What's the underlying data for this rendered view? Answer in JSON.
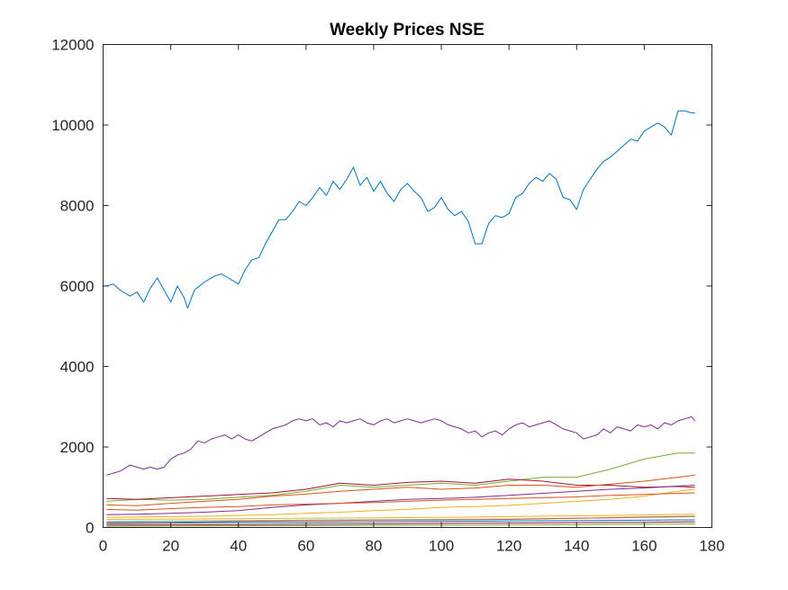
{
  "chart_data": {
    "type": "line",
    "title": "Weekly Prices NSE",
    "xlabel": "",
    "ylabel": "",
    "xlim": [
      0,
      180
    ],
    "ylim": [
      0,
      12000
    ],
    "xticks": [
      0,
      20,
      40,
      60,
      80,
      100,
      120,
      140,
      160,
      180
    ],
    "yticks": [
      0,
      2000,
      4000,
      6000,
      8000,
      10000,
      12000
    ],
    "grid": false,
    "legend": "none",
    "box": true,
    "series": [
      {
        "color": "#0072BD",
        "x": [
          1,
          3,
          5,
          8,
          10,
          12,
          14,
          16,
          18,
          20,
          22,
          24,
          25,
          27,
          30,
          33,
          35,
          37,
          40,
          42,
          44,
          46,
          48,
          50,
          52,
          54,
          56,
          58,
          60,
          62,
          64,
          66,
          68,
          70,
          72,
          74,
          76,
          78,
          80,
          82,
          84,
          86,
          88,
          90,
          92,
          94,
          96,
          98,
          100,
          102,
          104,
          106,
          108,
          110,
          112,
          114,
          116,
          118,
          120,
          122,
          124,
          126,
          128,
          130,
          132,
          134,
          136,
          138,
          140,
          142,
          144,
          146,
          148,
          150,
          152,
          154,
          156,
          158,
          160,
          162,
          164,
          166,
          168,
          170,
          172,
          174,
          175
        ],
        "y": [
          6000,
          6050,
          5900,
          5750,
          5850,
          5600,
          5950,
          6200,
          5900,
          5600,
          6000,
          5700,
          5450,
          5900,
          6100,
          6250,
          6300,
          6200,
          6050,
          6400,
          6650,
          6700,
          7050,
          7350,
          7650,
          7650,
          7850,
          8100,
          8000,
          8200,
          8450,
          8250,
          8600,
          8400,
          8650,
          8950,
          8500,
          8700,
          8350,
          8600,
          8300,
          8100,
          8400,
          8550,
          8350,
          8200,
          7850,
          7950,
          8200,
          7900,
          7750,
          7850,
          7600,
          7050,
          7050,
          7550,
          7750,
          7700,
          7800,
          8200,
          8300,
          8550,
          8700,
          8600,
          8800,
          8650,
          8200,
          8150,
          7900,
          8400,
          8650,
          8900,
          9100,
          9200,
          9350,
          9500,
          9650,
          9600,
          9850,
          9950,
          10050,
          9950,
          9750,
          10350,
          10350,
          10300,
          10300
        ]
      },
      {
        "color": "#7E2F8E",
        "x": [
          1,
          3,
          5,
          8,
          10,
          12,
          14,
          16,
          18,
          20,
          22,
          24,
          26,
          28,
          30,
          32,
          34,
          36,
          38,
          40,
          42,
          44,
          46,
          48,
          50,
          52,
          54,
          56,
          58,
          60,
          62,
          64,
          66,
          68,
          70,
          72,
          74,
          76,
          78,
          80,
          82,
          84,
          86,
          88,
          90,
          92,
          94,
          96,
          98,
          100,
          102,
          104,
          106,
          108,
          110,
          112,
          114,
          116,
          118,
          120,
          122,
          124,
          126,
          128,
          130,
          132,
          134,
          136,
          138,
          140,
          142,
          144,
          146,
          148,
          150,
          152,
          154,
          156,
          158,
          160,
          162,
          164,
          166,
          168,
          170,
          172,
          174,
          175
        ],
        "y": [
          1300,
          1350,
          1400,
          1550,
          1500,
          1450,
          1500,
          1450,
          1500,
          1700,
          1800,
          1850,
          1950,
          2150,
          2100,
          2200,
          2250,
          2300,
          2200,
          2300,
          2200,
          2150,
          2250,
          2350,
          2450,
          2500,
          2550,
          2650,
          2700,
          2650,
          2700,
          2550,
          2600,
          2500,
          2650,
          2600,
          2650,
          2700,
          2600,
          2550,
          2650,
          2700,
          2600,
          2650,
          2700,
          2650,
          2600,
          2650,
          2700,
          2650,
          2550,
          2500,
          2450,
          2350,
          2400,
          2250,
          2350,
          2400,
          2300,
          2450,
          2550,
          2600,
          2500,
          2550,
          2600,
          2650,
          2550,
          2450,
          2400,
          2350,
          2200,
          2250,
          2300,
          2450,
          2350,
          2500,
          2450,
          2400,
          2550,
          2500,
          2550,
          2450,
          2600,
          2550,
          2650,
          2700,
          2750,
          2650
        ]
      },
      {
        "color": "#77AC30",
        "x": [
          1,
          10,
          20,
          30,
          40,
          50,
          60,
          70,
          80,
          90,
          100,
          110,
          120,
          130,
          140,
          150,
          160,
          170,
          175
        ],
        "y": [
          650,
          700,
          680,
          700,
          750,
          800,
          900,
          1050,
          1000,
          1050,
          1100,
          1050,
          1150,
          1250,
          1250,
          1450,
          1700,
          1850,
          1850
        ]
      },
      {
        "color": "#A2142F",
        "x": [
          1,
          10,
          20,
          30,
          40,
          50,
          60,
          70,
          80,
          90,
          100,
          110,
          120,
          130,
          140,
          150,
          160,
          170,
          175
        ],
        "y": [
          720,
          700,
          740,
          780,
          820,
          860,
          950,
          1100,
          1050,
          1120,
          1150,
          1100,
          1200,
          1150,
          1050,
          1050,
          1000,
          1020,
          1000
        ]
      },
      {
        "color": "#D95319",
        "x": [
          1,
          10,
          20,
          30,
          40,
          50,
          60,
          70,
          80,
          90,
          100,
          110,
          120,
          130,
          140,
          150,
          160,
          170,
          175
        ],
        "y": [
          560,
          540,
          600,
          650,
          700,
          780,
          830,
          900,
          950,
          1000,
          950,
          980,
          1050,
          1050,
          1000,
          1080,
          1150,
          1250,
          1300
        ]
      },
      {
        "color": "#7E2F8E",
        "x": [
          1,
          10,
          20,
          30,
          40,
          50,
          60,
          70,
          80,
          90,
          100,
          110,
          120,
          130,
          140,
          150,
          160,
          170,
          175
        ],
        "y": [
          320,
          330,
          350,
          380,
          420,
          500,
          560,
          600,
          650,
          700,
          720,
          750,
          800,
          850,
          900,
          950,
          980,
          1030,
          1050
        ]
      },
      {
        "color": "#EDB120",
        "x": [
          1,
          10,
          20,
          30,
          40,
          50,
          60,
          70,
          80,
          90,
          100,
          110,
          120,
          130,
          140,
          150,
          160,
          170,
          175
        ],
        "y": [
          250,
          260,
          270,
          280,
          300,
          320,
          350,
          380,
          420,
          450,
          500,
          520,
          550,
          600,
          650,
          700,
          780,
          900,
          950
        ]
      },
      {
        "color": "#D95319",
        "x": [
          1,
          10,
          20,
          30,
          40,
          50,
          60,
          70,
          80,
          90,
          100,
          110,
          120,
          130,
          140,
          150,
          160,
          170,
          175
        ],
        "y": [
          450,
          430,
          470,
          500,
          520,
          560,
          580,
          600,
          620,
          650,
          680,
          700,
          720,
          740,
          760,
          800,
          820,
          850,
          860
        ]
      },
      {
        "color": "#4DBEEE",
        "x": [
          1,
          20,
          40,
          60,
          80,
          100,
          120,
          140,
          160,
          175
        ],
        "y": [
          150,
          160,
          170,
          180,
          190,
          200,
          210,
          230,
          250,
          270
        ]
      },
      {
        "color": "#0072BD",
        "x": [
          1,
          20,
          40,
          60,
          80,
          100,
          120,
          140,
          160,
          175
        ],
        "y": [
          100,
          110,
          120,
          130,
          140,
          150,
          160,
          170,
          180,
          190
        ]
      },
      {
        "color": "#EDB120",
        "x": [
          1,
          20,
          40,
          60,
          80,
          100,
          120,
          140,
          160,
          175
        ],
        "y": [
          200,
          210,
          220,
          230,
          240,
          250,
          270,
          290,
          310,
          330
        ]
      },
      {
        "color": "#A2142F",
        "x": [
          1,
          20,
          40,
          60,
          80,
          100,
          120,
          140,
          160,
          175
        ],
        "y": [
          60,
          65,
          70,
          80,
          90,
          100,
          110,
          120,
          130,
          140
        ]
      },
      {
        "color": "#77AC30",
        "x": [
          1,
          20,
          40,
          60,
          80,
          100,
          120,
          140,
          160,
          175
        ],
        "y": [
          30,
          35,
          40,
          45,
          50,
          55,
          60,
          70,
          80,
          90
        ]
      },
      {
        "color": "#D95319",
        "x": [
          1,
          20,
          40,
          60,
          80,
          100,
          120,
          140,
          160,
          175
        ],
        "y": [
          120,
          130,
          150,
          170,
          180,
          190,
          200,
          230,
          260,
          280
        ]
      }
    ]
  }
}
